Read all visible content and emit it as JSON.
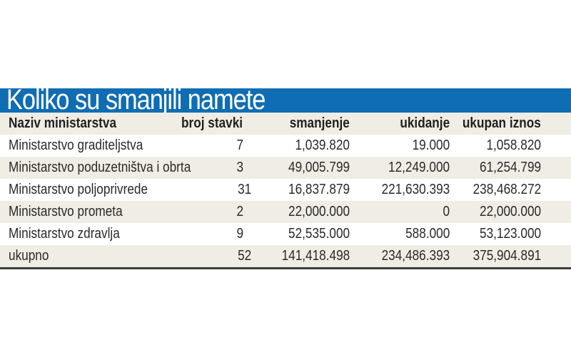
{
  "title": "Koliko su smanjili namete",
  "colors": {
    "title_bar": "#0f6db3",
    "title_text": "#ffffff",
    "alt_row": "#efede4",
    "text": "#231f20",
    "bottom_rule": "#3d3d3d"
  },
  "table": {
    "headers": {
      "name": "Naziv ministarstva",
      "count": "broj stavki",
      "reduction": "smanjenje",
      "abolition": "ukidanje",
      "total": "ukupan iznos"
    },
    "rows": [
      {
        "name": "Ministarstvo graditeljstva",
        "count": "7",
        "reduction": "1,039.820",
        "abolition": "19.000",
        "total": "1,058.820"
      },
      {
        "name": "Ministarstvo poduzetništva i obrta",
        "count": "3",
        "reduction": "49,005.799",
        "abolition": "12,249.000",
        "total": "61,254.799"
      },
      {
        "name": "Ministarstvo poljoprivrede",
        "count": "31",
        "reduction": "16,837.879",
        "abolition": "221,630.393",
        "total": "238,468.272"
      },
      {
        "name": "Ministarstvo prometa",
        "count": "2",
        "reduction": "22,000.000",
        "abolition": "0",
        "total": "22,000.000"
      },
      {
        "name": "Ministarstvo zdravlja",
        "count": "9",
        "reduction": "52,535.000",
        "abolition": "588.000",
        "total": "53,123.000"
      },
      {
        "name": "ukupno",
        "count": "52",
        "reduction": "141,418.498",
        "abolition": "234,486.393",
        "total": "375,904.891"
      }
    ]
  }
}
